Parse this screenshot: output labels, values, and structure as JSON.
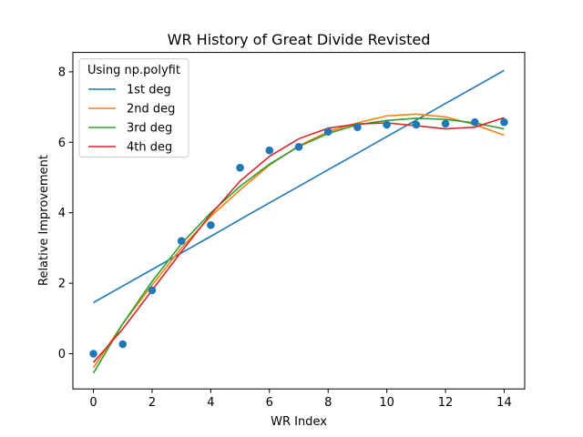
{
  "chart_data": {
    "type": "line",
    "title": "WR History of Great Divide Revisted",
    "xlabel": "WR Index",
    "ylabel": "Relative Improvement",
    "xlim": [
      -0.7,
      14.7
    ],
    "ylim": [
      -1.0,
      8.55
    ],
    "xticks": [
      0,
      2,
      4,
      6,
      8,
      10,
      12,
      14
    ],
    "yticks": [
      0,
      2,
      4,
      6,
      8
    ],
    "grid": false,
    "legend": {
      "title": "Using np.polyfit",
      "placement": "top-left"
    },
    "scatter": {
      "color": "#1f77b4",
      "x": [
        0,
        1,
        2,
        3,
        4,
        5,
        6,
        7,
        8,
        9,
        10,
        11,
        12,
        13,
        14
      ],
      "y": [
        0.0,
        0.27,
        1.8,
        3.2,
        3.65,
        5.28,
        5.77,
        5.87,
        6.3,
        6.43,
        6.5,
        6.5,
        6.53,
        6.57,
        6.57
      ]
    },
    "x": [
      0,
      1,
      2,
      3,
      4,
      5,
      6,
      7,
      8,
      9,
      10,
      11,
      12,
      13,
      14
    ],
    "series": [
      {
        "name": "1st deg",
        "color": "#1f77b4",
        "values": [
          1.45,
          1.92,
          2.39,
          2.86,
          3.33,
          3.81,
          4.28,
          4.75,
          5.22,
          5.69,
          6.16,
          6.63,
          7.1,
          7.57,
          8.04
        ]
      },
      {
        "name": "2nd deg",
        "color": "#ff7f0e",
        "values": [
          -0.4,
          0.85,
          1.95,
          3.0,
          3.9,
          4.65,
          5.35,
          5.9,
          6.3,
          6.55,
          6.75,
          6.8,
          6.72,
          6.5,
          6.2
        ]
      },
      {
        "name": "3rd deg",
        "color": "#2ca02c",
        "values": [
          -0.55,
          0.85,
          2.05,
          3.12,
          4.0,
          4.75,
          5.38,
          5.88,
          6.25,
          6.5,
          6.62,
          6.68,
          6.65,
          6.55,
          6.38
        ]
      },
      {
        "name": "4th deg",
        "color": "#d62728",
        "values": [
          -0.25,
          0.7,
          1.8,
          2.9,
          3.95,
          4.9,
          5.6,
          6.1,
          6.4,
          6.52,
          6.55,
          6.47,
          6.38,
          6.43,
          6.7
        ]
      }
    ]
  }
}
